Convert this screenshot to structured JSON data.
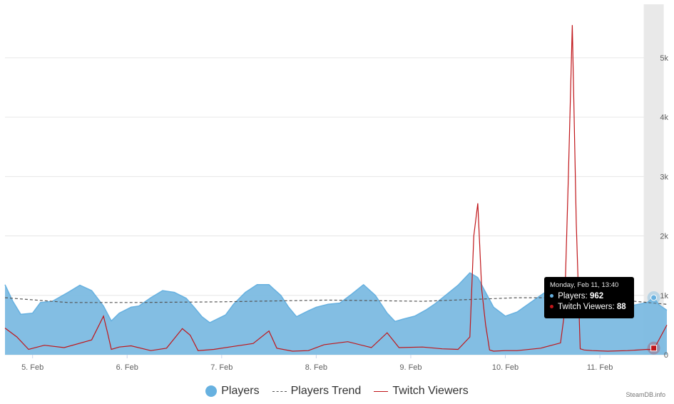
{
  "colors": {
    "players": "#67b1e0",
    "players_fill": "#7cbbe2",
    "trend": "#555555",
    "twitch": "#c0161a",
    "grid": "#e6e6e6",
    "crosshair": "#e9e9e9"
  },
  "chart_data": {
    "type": "area",
    "x_tick_labels": [
      "5. Feb",
      "6. Feb",
      "7. Feb",
      "8. Feb",
      "9. Feb",
      "10. Feb",
      "11. Feb"
    ],
    "y_tick_labels": [
      "0",
      "1k",
      "2k",
      "3k",
      "4k",
      "5k"
    ],
    "ylim": [
      0,
      5900
    ],
    "y_axis_position": "right",
    "grid": true,
    "legend_position": "bottom-center",
    "x": [
      "2025-02-04T17:00",
      "2025-02-04T19:00",
      "2025-02-04T21:00",
      "2025-02-05T00:00",
      "2025-02-05T02:00",
      "2025-02-05T05:00",
      "2025-02-05T09:00",
      "2025-02-05T12:00",
      "2025-02-05T15:00",
      "2025-02-05T18:00",
      "2025-02-05T20:00",
      "2025-02-05T22:00",
      "2025-02-06T01:00",
      "2025-02-06T03:00",
      "2025-02-06T06:00",
      "2025-02-06T09:00",
      "2025-02-06T12:00",
      "2025-02-06T15:00",
      "2025-02-06T17:00",
      "2025-02-06T19:00",
      "2025-02-06T21:00",
      "2025-02-07T01:00",
      "2025-02-07T03:00",
      "2025-02-07T06:00",
      "2025-02-07T09:00",
      "2025-02-07T12:00",
      "2025-02-07T15:00",
      "2025-02-07T17:00",
      "2025-02-07T19:00",
      "2025-02-07T22:00",
      "2025-02-08T00:00",
      "2025-02-08T03:00",
      "2025-02-08T06:00",
      "2025-02-08T09:00",
      "2025-02-08T12:00",
      "2025-02-08T15:00",
      "2025-02-08T18:00",
      "2025-02-08T20:00",
      "2025-02-08T22:00",
      "2025-02-09T01:00",
      "2025-02-09T04:00",
      "2025-02-09T06:00",
      "2025-02-09T09:00",
      "2025-02-09T12:00",
      "2025-02-09T15:00",
      "2025-02-09T17:00",
      "2025-02-09T19:00",
      "2025-02-09T21:00",
      "2025-02-10T00:00",
      "2025-02-10T03:00",
      "2025-02-10T06:00",
      "2025-02-10T09:00",
      "2025-02-10T12:00",
      "2025-02-10T15:00",
      "2025-02-10T17:00",
      "2025-02-10T19:00",
      "2025-02-10T21:00",
      "2025-02-11T00:00",
      "2025-02-11T03:00",
      "2025-02-11T06:00",
      "2025-02-11T09:00",
      "2025-02-11T12:00",
      "2025-02-11T13:40",
      "2025-02-11T15:00",
      "2025-02-11T17:00"
    ],
    "series": [
      {
        "name": "Players",
        "values": [
          1180,
          900,
          680,
          700,
          880,
          900,
          1050,
          1170,
          1080,
          820,
          570,
          700,
          800,
          820,
          960,
          1080,
          1050,
          950,
          800,
          640,
          540,
          670,
          850,
          1050,
          1180,
          1180,
          1000,
          800,
          640,
          740,
          800,
          850,
          870,
          1020,
          1180,
          1000,
          700,
          560,
          600,
          650,
          760,
          850,
          1010,
          1170,
          1380,
          1300,
          1050,
          800,
          650,
          720,
          860,
          1000,
          1140,
          1220,
          900,
          700,
          640,
          740,
          820,
          800,
          840,
          880,
          962,
          840,
          750
        ]
      },
      {
        "name": "Players Trend",
        "x": [
          "2025-02-04T17:00",
          "2025-02-05T09:00",
          "2025-02-06T03:00",
          "2025-02-06T23:00",
          "2025-02-08T03:00",
          "2025-02-09T03:00",
          "2025-02-10T03:00",
          "2025-02-10T23:00",
          "2025-02-11T17:00"
        ],
        "values": [
          960,
          880,
          880,
          890,
          920,
          900,
          960,
          960,
          850
        ]
      },
      {
        "name": "Twitch Viewers",
        "x": [
          "2025-02-04T17:00",
          "2025-02-04T20:00",
          "2025-02-04T23:00",
          "2025-02-05T03:00",
          "2025-02-05T08:00",
          "2025-02-05T15:00",
          "2025-02-05T18:00",
          "2025-02-05T19:00",
          "2025-02-05T20:00",
          "2025-02-05T22:00",
          "2025-02-06T01:00",
          "2025-02-06T06:00",
          "2025-02-06T10:00",
          "2025-02-06T14:00",
          "2025-02-06T16:00",
          "2025-02-06T18:00",
          "2025-02-06T22:00",
          "2025-02-07T03:00",
          "2025-02-07T08:00",
          "2025-02-07T12:00",
          "2025-02-07T14:00",
          "2025-02-07T18:00",
          "2025-02-07T22:00",
          "2025-02-08T02:00",
          "2025-02-08T08:00",
          "2025-02-08T14:00",
          "2025-02-08T18:00",
          "2025-02-08T21:00",
          "2025-02-09T03:00",
          "2025-02-09T08:00",
          "2025-02-09T12:00",
          "2025-02-09T15:00",
          "2025-02-09T16:00",
          "2025-02-09T17:00",
          "2025-02-09T18:00",
          "2025-02-09T19:00",
          "2025-02-09T20:00",
          "2025-02-09T21:00",
          "2025-02-10T00:00",
          "2025-02-10T03:00",
          "2025-02-10T09:00",
          "2025-02-10T14:00",
          "2025-02-10T15:00",
          "2025-02-10T16:00",
          "2025-02-10T17:00",
          "2025-02-10T18:00",
          "2025-02-10T19:00",
          "2025-02-10T20:00",
          "2025-02-10T22:00",
          "2025-02-11T02:00",
          "2025-02-11T07:00",
          "2025-02-11T12:00",
          "2025-02-11T13:40",
          "2025-02-11T17:00"
        ],
        "values": [
          450,
          300,
          90,
          160,
          120,
          250,
          650,
          380,
          90,
          130,
          150,
          70,
          110,
          440,
          330,
          70,
          90,
          140,
          190,
          400,
          110,
          60,
          70,
          170,
          220,
          120,
          370,
          120,
          130,
          100,
          90,
          300,
          2000,
          2550,
          1100,
          500,
          80,
          60,
          70,
          70,
          110,
          200,
          700,
          3000,
          5550,
          2200,
          100,
          80,
          70,
          60,
          70,
          90,
          88,
          500
        ]
      }
    ]
  },
  "legend": {
    "players": "Players",
    "trend": "Players Trend",
    "twitch": "Twitch Viewers"
  },
  "tooltip": {
    "date": "Monday, Feb 11, 13:40",
    "players_label": "Players:",
    "players_value": "962",
    "twitch_label": "Twitch Viewers:",
    "twitch_value": "88"
  },
  "credits": "SteamDB.info"
}
